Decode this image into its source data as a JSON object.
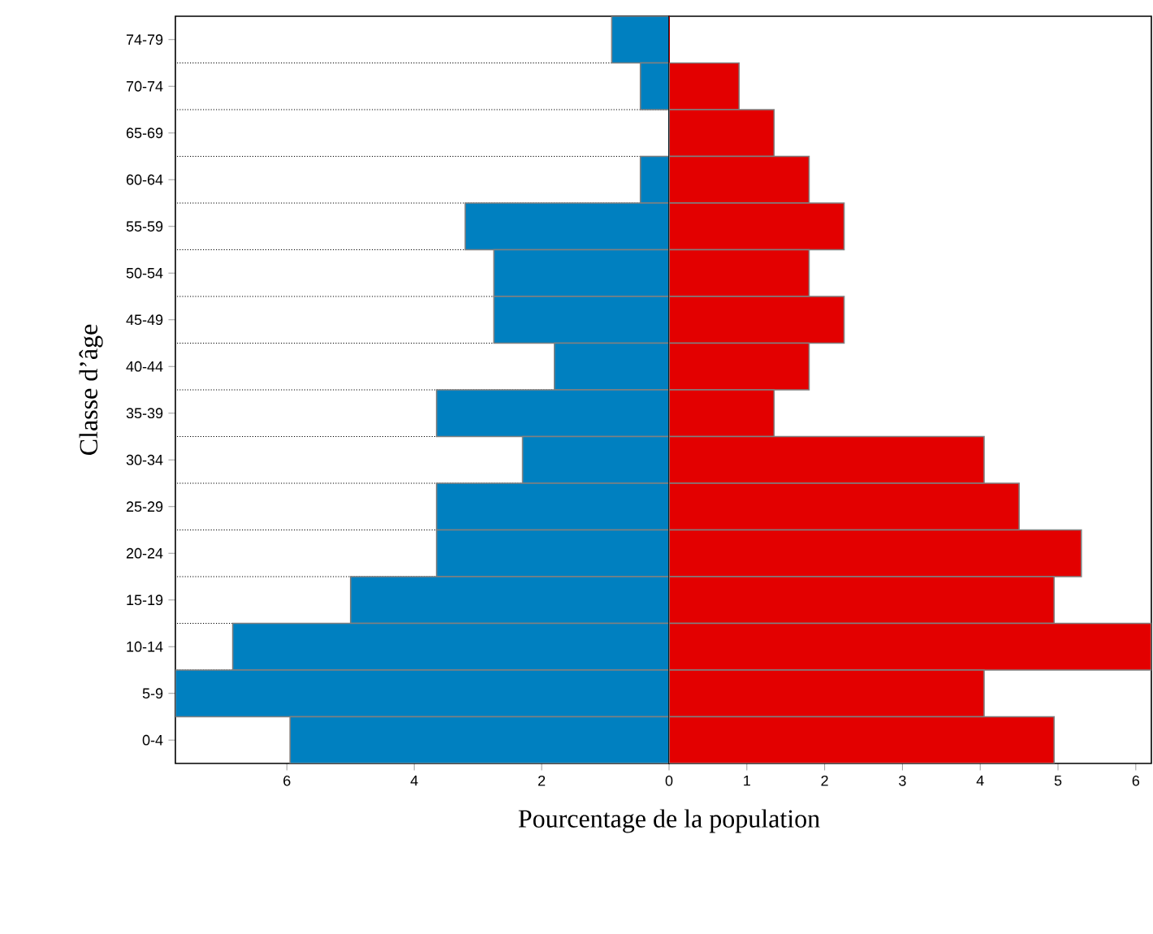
{
  "chart_data": [
    {
      "type": "bar",
      "orientation": "horizontal",
      "ylabel": "Classe d’âge",
      "categories": [
        "74-79",
        "70-74",
        "65-69",
        "60-64",
        "55-59",
        "50-54",
        "45-49",
        "40-44",
        "35-39",
        "30-34",
        "25-29",
        "20-24",
        "15-19",
        "10-14",
        "5-9",
        "0-4"
      ],
      "series": [
        {
          "color": "#0080c0",
          "values": [
            0.9,
            0.45,
            0,
            0.45,
            3.2,
            2.75,
            2.75,
            1.8,
            3.65,
            2.3,
            3.65,
            3.65,
            5.0,
            6.85,
            7.75,
            5.95
          ]
        }
      ],
      "xlim": [
        7.75,
        0
      ],
      "xticks": [
        6,
        4,
        2,
        0
      ],
      "grid": "y"
    },
    {
      "type": "bar",
      "orientation": "horizontal",
      "xlabel": "Pourcentage de la population",
      "categories": [
        null,
        null,
        null,
        null,
        null,
        null,
        null,
        null,
        null,
        null,
        null,
        null,
        null,
        null,
        null,
        null
      ],
      "series": [
        {
          "color": "#e30000",
          "values": [
            0,
            0.9,
            1.35,
            1.8,
            2.25,
            1.8,
            2.25,
            1.8,
            1.35,
            4.05,
            4.5,
            5.3,
            4.95,
            6.2,
            4.05,
            4.95
          ]
        }
      ],
      "xlim": [
        0,
        6.2
      ],
      "xticks": [
        1,
        2,
        3,
        4,
        5,
        6
      ],
      "grid": "y",
      "tick_labels": "x"
    }
  ]
}
